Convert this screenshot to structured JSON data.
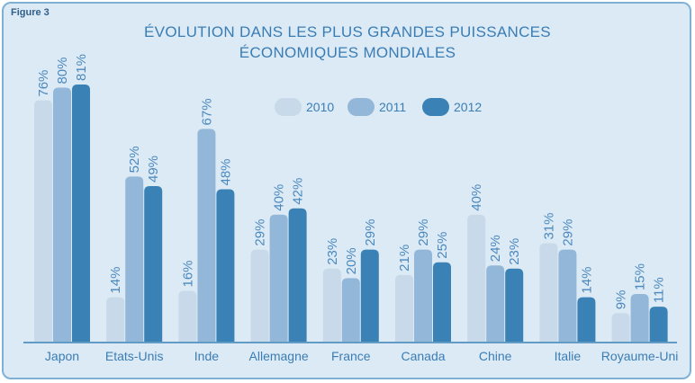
{
  "figure_label": "Figure 3",
  "chart_data": {
    "type": "bar",
    "title": "ÉVOLUTION DANS LES PLUS GRANDES PUISSANCES ÉCONOMIQUES MONDIALES",
    "title_lines": [
      "ÉVOLUTION DANS LES PLUS GRANDES PUISSANCES",
      "ÉCONOMIQUES MONDIALES"
    ],
    "categories": [
      "Japon",
      "Etats-Unis",
      "Inde",
      "Allemagne",
      "France",
      "Canada",
      "Chine",
      "Italie",
      "Royaume-Uni"
    ],
    "series": [
      {
        "name": "2010",
        "values": [
          76,
          14,
          16,
          29,
          23,
          21,
          40,
          31,
          9
        ],
        "labels": [
          "76%",
          "14%",
          "16%",
          "29%",
          "23%",
          "21%",
          "40%",
          "31%",
          "9%"
        ],
        "color": "#c8d9ea"
      },
      {
        "name": "2011",
        "values": [
          80,
          52,
          67,
          40,
          20,
          29,
          24,
          29,
          15
        ],
        "labels": [
          "80%",
          "52%",
          "67%",
          "40%",
          "20%",
          "29%",
          "24%",
          "29%",
          "15%"
        ],
        "color": "#93b7d8"
      },
      {
        "name": "2012",
        "values": [
          81,
          49,
          48,
          42,
          29,
          25,
          23,
          14,
          11
        ],
        "labels": [
          "81%",
          "49%",
          "48%",
          "42%",
          "29%",
          "25%",
          "23%",
          "14%",
          "11%"
        ],
        "color": "#3a82b6"
      }
    ],
    "ylim": [
      0,
      81
    ],
    "legend": "top-center",
    "grid": false
  }
}
